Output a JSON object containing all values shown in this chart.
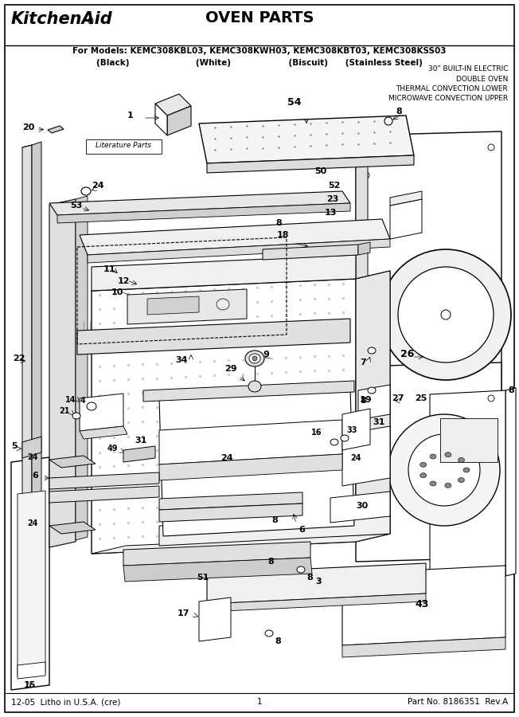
{
  "title": "OVEN PARTS",
  "brand": "KitchenAid®",
  "models_line": "For Models: KEMC308KBL03, KEMC308KWH03, KEMC308KBT03, KEMC308KSS03",
  "colors_line": "              (Black)              (White)              (Biscuit)    (Stainless Steel)",
  "subtitle_lines": [
    "30\" BUILT-IN ELECTRIC",
    "DOUBLE OVEN",
    "THERMAL CONVECTION LOWER",
    "MICROWAVE CONVECTION UPPER"
  ],
  "footer_left": "12-05  Litho in U.S.A. (cre)",
  "footer_center": "1",
  "footer_right": "Part No. 8186351  Rev.A",
  "background_color": "#ffffff",
  "fig_width": 6.52,
  "fig_height": 9.0,
  "dpi": 100
}
